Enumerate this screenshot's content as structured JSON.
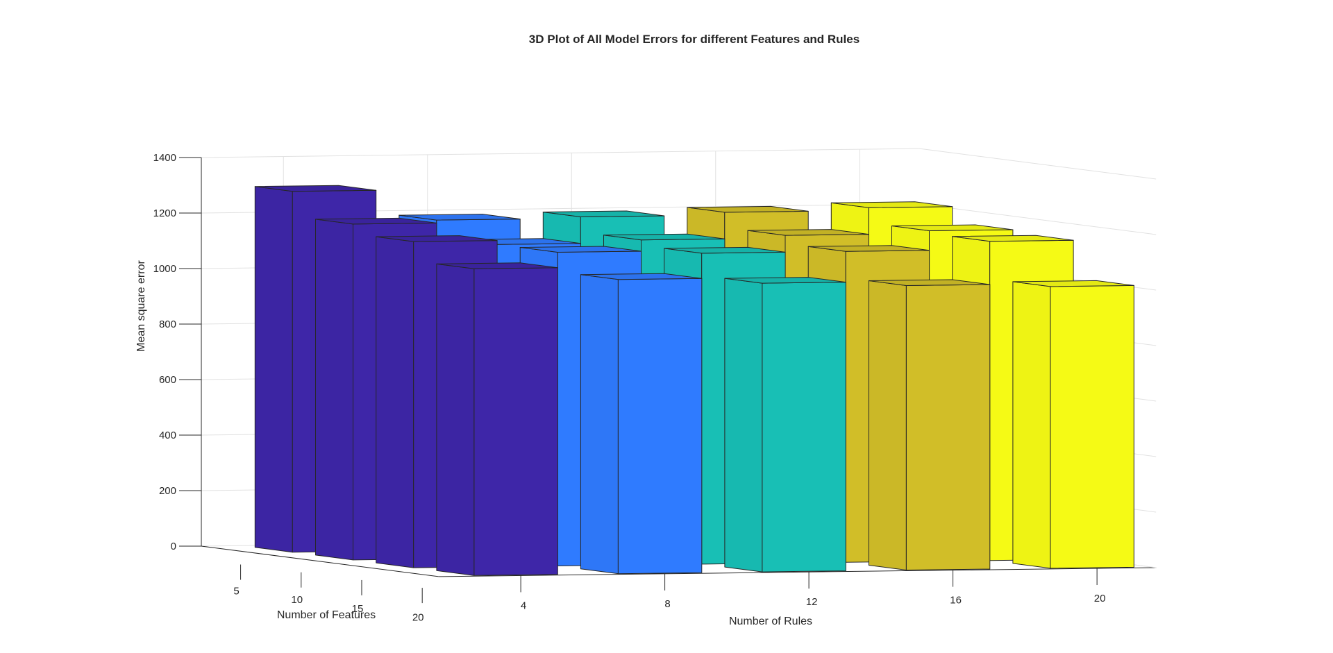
{
  "chart_data": {
    "type": "bar3",
    "title": "3D Plot of All Model Errors for different Features and Rules",
    "xlabel": "Number of Rules",
    "ylabel": "Number of Features",
    "zlabel": "Mean square error",
    "x_ticks": [
      "4",
      "8",
      "12",
      "16",
      "20"
    ],
    "y_ticks": [
      "5",
      "10",
      "15",
      "20"
    ],
    "z_ticks": [
      "0",
      "200",
      "400",
      "600",
      "800",
      "1000",
      "1200",
      "1400"
    ],
    "zlim": [
      0,
      1400
    ],
    "rules": [
      4,
      8,
      12,
      16,
      20
    ],
    "features": [
      5,
      10,
      15,
      20
    ],
    "series": [
      {
        "name": "",
        "features": 5,
        "values": [
          1300,
          1190,
          1195,
          1205,
          1215
        ]
      },
      {
        "name": "",
        "features": 10,
        "values": [
          1210,
          1130,
          1140,
          1150,
          1160
        ]
      },
      {
        "name": "",
        "features": 15,
        "values": [
          1175,
          1130,
          1120,
          1120,
          1150
        ]
      },
      {
        "name": "",
        "features": 20,
        "values": [
          1105,
          1060,
          1040,
          1025,
          1015
        ]
      }
    ],
    "colors": [
      "#3e26a8",
      "#2f7bff",
      "#18bfb5",
      "#d1be28",
      "#f5fa15"
    ],
    "grid": true
  }
}
